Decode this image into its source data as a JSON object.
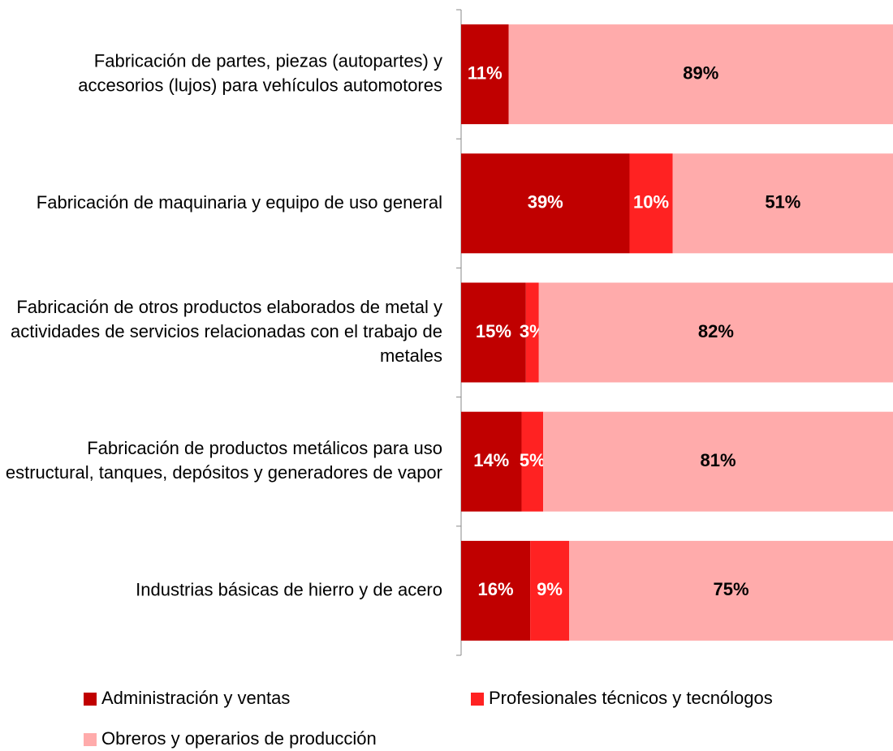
{
  "chart_data": {
    "type": "stacked_bar_horizontal",
    "categories": [
      "Fabricación de partes, piezas (autopartes) y accesorios (lujos) para vehículos automotores",
      "Fabricación de maquinaria y equipo de uso general",
      "Fabricación de otros productos elaborados de metal y actividades de servicios relacionadas con el trabajo de metales",
      "Fabricación de productos metálicos para uso estructural, tanques, depósitos y generadores de vapor",
      "Industrias básicas de hierro y de acero"
    ],
    "series": [
      {
        "name": "Administración y ventas",
        "color": "#c00000",
        "label_color": "#ffffff",
        "values": [
          11,
          39,
          15,
          14,
          16
        ],
        "value_labels": [
          "11%",
          "39%",
          "15%",
          "14%",
          "16%"
        ]
      },
      {
        "name": "Profesionales técnicos y tecnólogos",
        "color": "#ff2222",
        "label_color": "#ffffff",
        "values": [
          null,
          10,
          3,
          5,
          9
        ],
        "value_labels": [
          null,
          "10%",
          "3%",
          "5%",
          "9%"
        ]
      },
      {
        "name": "Obreros y operarios de producción",
        "color": "#ffabab",
        "label_color": "#000000",
        "values": [
          89,
          51,
          82,
          81,
          75
        ],
        "value_labels": [
          "89%",
          "51%",
          "82%",
          "81%",
          "75%"
        ]
      }
    ],
    "xlim": [
      0,
      100
    ]
  }
}
